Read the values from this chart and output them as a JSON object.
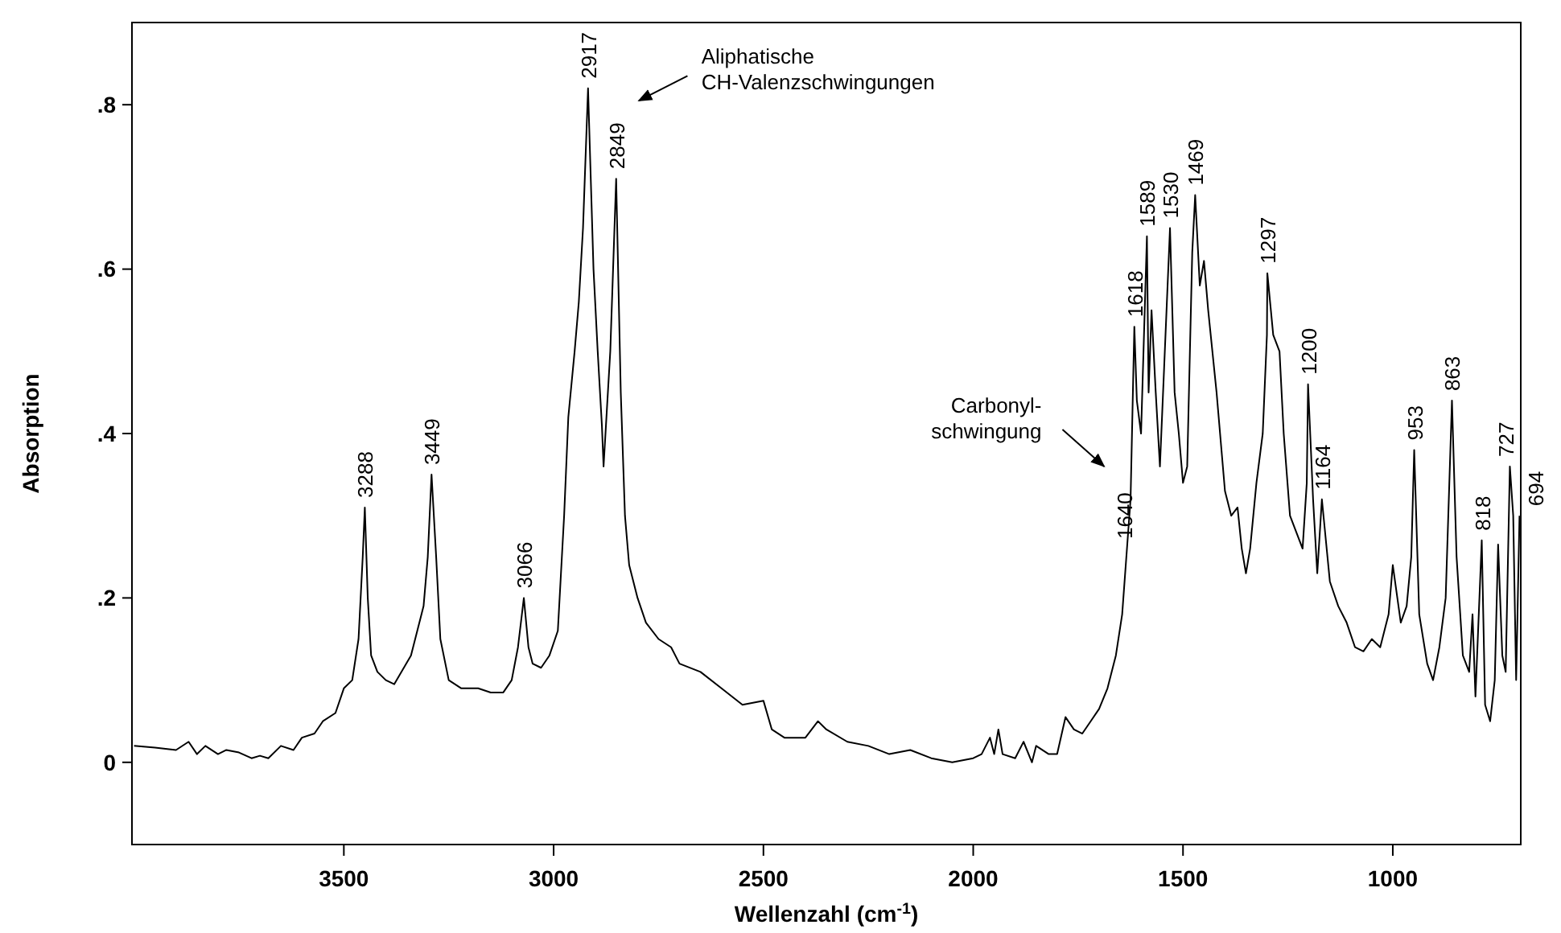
{
  "chart_data": {
    "type": "line",
    "xlabel": "Wellenzahl (cm$^{-1}$)",
    "ylabel": "Absorption",
    "xlim": [
      4005,
      695
    ],
    "ylim": [
      -0.1,
      0.9
    ],
    "xticks": [
      3500,
      3000,
      2500,
      2000,
      1500,
      1000
    ],
    "yticks": [
      {
        "value": 0,
        "label": "0"
      },
      {
        "value": 0.2,
        "label": ".2"
      },
      {
        "value": 0.4,
        "label": ".4"
      },
      {
        "value": 0.6,
        "label": ".6"
      },
      {
        "value": 0.8,
        "label": ".8"
      }
    ],
    "grid": false,
    "marker": "none",
    "line_style": "solid",
    "series": [
      {
        "color": "#000000",
        "x": [
          4000,
          3950,
          3900,
          3870,
          3850,
          3830,
          3800,
          3780,
          3750,
          3720,
          3700,
          3680,
          3650,
          3620,
          3600,
          3570,
          3550,
          3520,
          3500,
          3480,
          3465,
          3455,
          3450,
          3443,
          3435,
          3420,
          3400,
          3380,
          3340,
          3310,
          3300,
          3291,
          3280,
          3270,
          3250,
          3220,
          3180,
          3150,
          3120,
          3100,
          3085,
          3071,
          3060,
          3050,
          3030,
          3010,
          2990,
          2975,
          2965,
          2950,
          2940,
          2930,
          2918,
          2905,
          2895,
          2885,
          2881,
          2865,
          2851,
          2840,
          2830,
          2820,
          2800,
          2780,
          2750,
          2720,
          2700,
          2650,
          2600,
          2550,
          2500,
          2480,
          2450,
          2400,
          2370,
          2350,
          2300,
          2250,
          2200,
          2150,
          2100,
          2050,
          2000,
          1980,
          1960,
          1950,
          1940,
          1930,
          1900,
          1880,
          1860,
          1850,
          1820,
          1800,
          1780,
          1760,
          1740,
          1720,
          1700,
          1680,
          1660,
          1645,
          1635,
          1625,
          1616,
          1610,
          1600,
          1586,
          1582,
          1575,
          1565,
          1555,
          1545,
          1531,
          1520,
          1510,
          1500,
          1490,
          1478,
          1471,
          1460,
          1450,
          1440,
          1420,
          1400,
          1385,
          1370,
          1360,
          1350,
          1340,
          1325,
          1310,
          1300,
          1299,
          1285,
          1270,
          1260,
          1245,
          1230,
          1215,
          1205,
          1202,
          1190,
          1180,
          1169,
          1150,
          1130,
          1110,
          1090,
          1070,
          1050,
          1030,
          1010,
          1000,
          981,
          967,
          956,
          949,
          937,
          918,
          904,
          889,
          874,
          859,
          848,
          833,
          818,
          810,
          803,
          788,
          780,
          768,
          757,
          749,
          739,
          731,
          721,
          713,
          706,
          698
        ],
        "values": [
          0.02,
          0.018,
          0.015,
          0.025,
          0.01,
          0.02,
          0.01,
          0.015,
          0.012,
          0.005,
          0.008,
          0.005,
          0.02,
          0.015,
          0.03,
          0.035,
          0.05,
          0.06,
          0.09,
          0.1,
          0.15,
          0.25,
          0.31,
          0.2,
          0.13,
          0.11,
          0.1,
          0.095,
          0.13,
          0.19,
          0.25,
          0.35,
          0.25,
          0.15,
          0.1,
          0.09,
          0.09,
          0.085,
          0.085,
          0.1,
          0.14,
          0.2,
          0.14,
          0.12,
          0.115,
          0.13,
          0.16,
          0.3,
          0.42,
          0.5,
          0.56,
          0.65,
          0.82,
          0.6,
          0.5,
          0.41,
          0.36,
          0.5,
          0.71,
          0.45,
          0.3,
          0.24,
          0.2,
          0.17,
          0.15,
          0.14,
          0.12,
          0.11,
          0.09,
          0.07,
          0.075,
          0.04,
          0.03,
          0.03,
          0.05,
          0.04,
          0.025,
          0.02,
          0.01,
          0.015,
          0.005,
          0,
          0.005,
          0.01,
          0.03,
          0.01,
          0.04,
          0.01,
          0.005,
          0.025,
          0,
          0.02,
          0.01,
          0.01,
          0.055,
          0.04,
          0.035,
          0.05,
          0.065,
          0.09,
          0.13,
          0.18,
          0.25,
          0.32,
          0.53,
          0.44,
          0.4,
          0.64,
          0.45,
          0.55,
          0.45,
          0.36,
          0.48,
          0.65,
          0.45,
          0.4,
          0.34,
          0.36,
          0.62,
          0.69,
          0.58,
          0.61,
          0.55,
          0.45,
          0.33,
          0.3,
          0.31,
          0.26,
          0.23,
          0.26,
          0.34,
          0.4,
          0.52,
          0.595,
          0.52,
          0.5,
          0.4,
          0.3,
          0.28,
          0.26,
          0.34,
          0.46,
          0.32,
          0.23,
          0.32,
          0.22,
          0.19,
          0.17,
          0.14,
          0.135,
          0.15,
          0.14,
          0.18,
          0.24,
          0.17,
          0.19,
          0.25,
          0.38,
          0.18,
          0.12,
          0.1,
          0.14,
          0.2,
          0.44,
          0.25,
          0.13,
          0.11,
          0.18,
          0.08,
          0.27,
          0.07,
          0.05,
          0.1,
          0.265,
          0.13,
          0.11,
          0.36,
          0.3,
          0.1,
          0.3
        ]
      }
    ],
    "annotations": [
      {
        "text": "3288",
        "x": 3450,
        "y": 0.31
      },
      {
        "text": "3449",
        "x": 3291,
        "y": 0.35
      },
      {
        "text": "3066",
        "x": 3071,
        "y": 0.2
      },
      {
        "text": "2917",
        "x": 2918,
        "y": 0.82
      },
      {
        "text": "2849",
        "x": 2851,
        "y": 0.71
      },
      "Aliphatische\nCH-Valenzschwingungen",
      "Carbonyl-\nschwingung",
      {
        "text": "1640",
        "x": 1640,
        "y": 0.26
      },
      {
        "text": "1618",
        "x": 1616,
        "y": 0.53
      },
      {
        "text": "1589",
        "x": 1586,
        "y": 0.64
      },
      {
        "text": "1530",
        "x": 1531,
        "y": 0.65
      },
      {
        "text": "1469",
        "x": 1471,
        "y": 0.69
      },
      {
        "text": "1297",
        "x": 1299,
        "y": 0.595
      },
      {
        "text": "1200",
        "x": 1202,
        "y": 0.46
      },
      {
        "text": "1164",
        "x": 1169,
        "y": 0.32
      },
      {
        "text": "953",
        "x": 949,
        "y": 0.38
      },
      {
        "text": "863",
        "x": 859,
        "y": 0.44
      },
      {
        "text": "818",
        "x": 788,
        "y": 0.27
      },
      {
        "text": "727",
        "x": 731,
        "y": 0.36
      },
      {
        "text": "694",
        "x": 706,
        "y": 0.3
      }
    ]
  }
}
